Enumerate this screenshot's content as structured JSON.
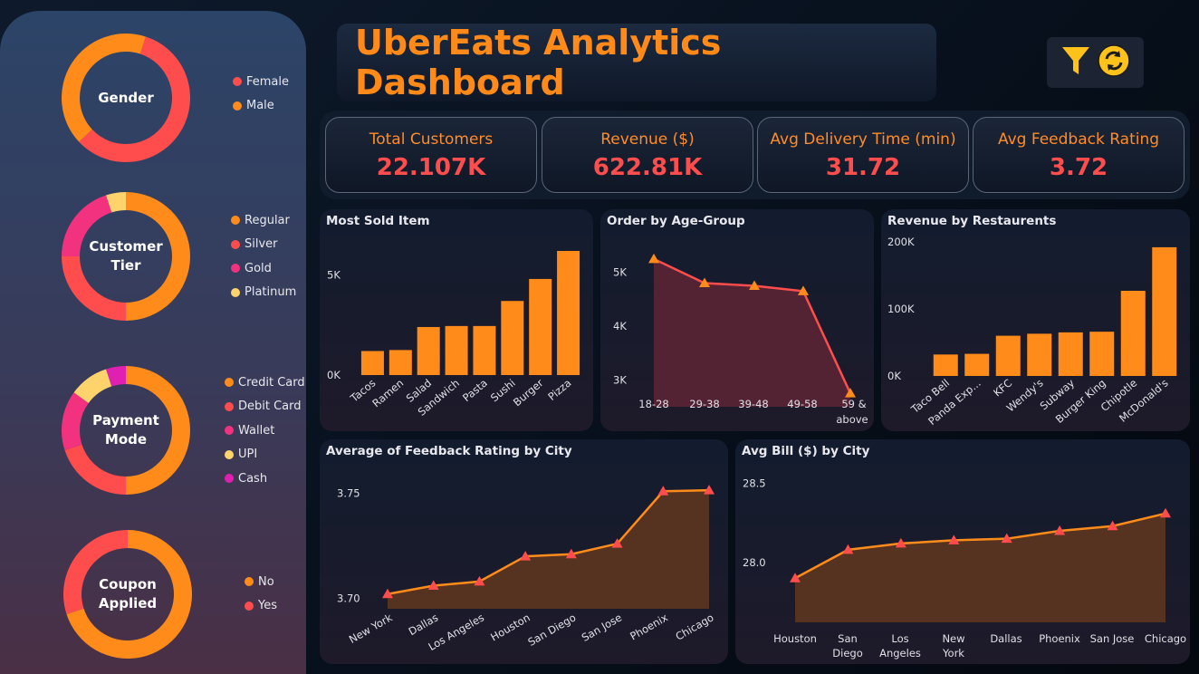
{
  "dashboard": {
    "title": "UberEats Analytics Dashboard",
    "icons": [
      "filter-icon",
      "refresh-icon"
    ]
  },
  "kpis": [
    {
      "label": "Total Customers",
      "value": "22.107K"
    },
    {
      "label": "Revenue ($)",
      "value": "622.81K"
    },
    {
      "label": "Avg Delivery Time (min)",
      "value": "31.72"
    },
    {
      "label": "Avg Feedback Rating",
      "value": "3.72"
    }
  ],
  "donuts": {
    "gender": {
      "title": "Gender",
      "legend": [
        {
          "label": "Female",
          "color": "#ff4d4d"
        },
        {
          "label": "Male",
          "color": "#ff8c1a"
        }
      ],
      "values": [
        0.58,
        0.42
      ]
    },
    "tier": {
      "title": "Customer Tier",
      "legend": [
        {
          "label": "Regular",
          "color": "#ff8c1a"
        },
        {
          "label": "Silver",
          "color": "#ff4d4d"
        },
        {
          "label": "Gold",
          "color": "#f2317f"
        },
        {
          "label": "Platinum",
          "color": "#ffd36b"
        }
      ],
      "values": [
        0.5,
        0.25,
        0.2,
        0.05
      ]
    },
    "payment": {
      "title": "Payment Mode",
      "legend": [
        {
          "label": "Credit Card",
          "color": "#ff8c1a"
        },
        {
          "label": "Debit Card",
          "color": "#ff4d4d"
        },
        {
          "label": "Wallet",
          "color": "#f2317f"
        },
        {
          "label": "UPI",
          "color": "#ffd36b"
        },
        {
          "label": "Cash",
          "color": "#e020b0"
        }
      ],
      "values": [
        0.5,
        0.2,
        0.15,
        0.1,
        0.05
      ]
    },
    "coupon": {
      "title": "Coupon Applied",
      "legend": [
        {
          "label": "No",
          "color": "#ff8c1a"
        },
        {
          "label": "Yes",
          "color": "#ff4d4d"
        }
      ],
      "values": [
        0.7,
        0.3
      ]
    }
  },
  "chart_data": [
    {
      "type": "bar",
      "title": "Most Sold Item",
      "categories": [
        "Tacos",
        "Ramen",
        "Salad",
        "Sandwich",
        "Pasta",
        "Sushi",
        "Burger",
        "Pizza"
      ],
      "values": [
        1200,
        1250,
        2400,
        2450,
        2450,
        3700,
        4800,
        6200
      ],
      "ylim": [
        0,
        6200
      ],
      "yticks": [
        "0K",
        "5K"
      ],
      "ytick_values": [
        0,
        5000
      ],
      "color": "#ff8c1a"
    },
    {
      "type": "area",
      "title": "Order by Age-Group",
      "categories": [
        "18-28",
        "29-38",
        "39-48",
        "49-58",
        "59 & above"
      ],
      "values": [
        5250,
        4800,
        4750,
        4650,
        2750
      ],
      "ylim": [
        2500,
        5500
      ],
      "yticks": [
        "5K",
        "4K",
        "3K"
      ],
      "ytick_values": [
        5000,
        4000,
        3000
      ],
      "line_color": "#ff4d4d",
      "marker_color": "#ff8c1a"
    },
    {
      "type": "bar",
      "title": "Revenue by Restaurents",
      "categories": [
        "Taco Bell",
        "Panda Exp...",
        "KFC",
        "Wendy's",
        "Subway",
        "Burger King",
        "Chipotle",
        "McDonald's"
      ],
      "values": [
        32000,
        33000,
        60000,
        63000,
        65000,
        66000,
        127000,
        192000
      ],
      "ylim": [
        0,
        200000
      ],
      "yticks": [
        "200K",
        "100K",
        "0K"
      ],
      "ytick_values": [
        200000,
        100000,
        0
      ],
      "color": "#ff8c1a"
    },
    {
      "type": "area",
      "title": "Average of Feedback Rating by City",
      "categories": [
        "New York",
        "Dallas",
        "Los Angeles",
        "Houston",
        "San Diego",
        "San Jose",
        "Phoenix",
        "Chicago"
      ],
      "values": [
        3.702,
        3.706,
        3.708,
        3.72,
        3.721,
        3.726,
        3.751,
        3.7515
      ],
      "ylim": [
        3.695,
        3.755
      ],
      "yticks": [
        "3.75",
        "3.70"
      ],
      "ytick_values": [
        3.75,
        3.7
      ],
      "line_color": "#ff8c1a",
      "marker_color": "#ff4d4d"
    },
    {
      "type": "area",
      "title": "Avg Bill ($) by City",
      "categories": [
        "Houston",
        "San Diego",
        "Los Angeles",
        "New York",
        "Dallas",
        "Phoenix",
        "San Jose",
        "Chicago"
      ],
      "values": [
        27.9,
        28.08,
        28.12,
        28.14,
        28.15,
        28.2,
        28.23,
        28.31
      ],
      "ylim": [
        27.62,
        28.55
      ],
      "yticks": [
        "28.5",
        "28.0"
      ],
      "ytick_values": [
        28.5,
        28.0
      ],
      "line_color": "#ff8c1a",
      "marker_color": "#ff4d4d"
    }
  ]
}
